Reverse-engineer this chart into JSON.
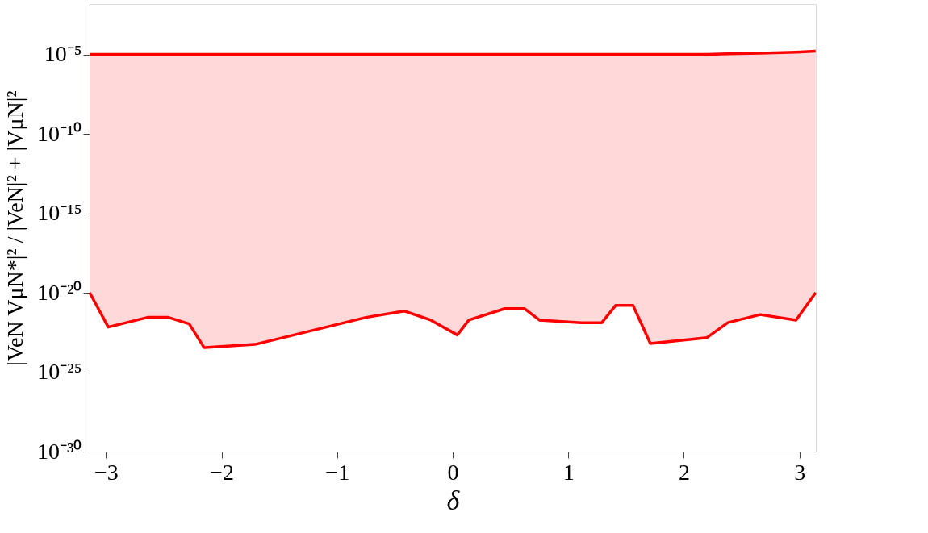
{
  "chart_data": {
    "type": "line",
    "xlabel": "δ",
    "ylabel": "|VeN VμN*|² / |VeN|² + |VμN|²",
    "log": "y",
    "grid": false,
    "line_style": "solid",
    "xlim": [
      -3.1416,
      3.1416
    ],
    "xticks": [
      -3,
      -2,
      -1,
      0,
      1,
      2,
      3
    ],
    "ylim": [
      1e-30,
      0.015
    ],
    "yticks": [
      {
        "value": 1e-30,
        "label": "10⁻³⁰"
      },
      {
        "value": 1e-25,
        "label": "10⁻²⁵"
      },
      {
        "value": 1e-20,
        "label": "10⁻²⁰"
      },
      {
        "value": 1e-15,
        "label": "10⁻¹⁵"
      },
      {
        "value": 1e-10,
        "label": "10⁻¹⁰"
      },
      {
        "value": 1e-05,
        "label": "10⁻⁵"
      }
    ],
    "series": [
      {
        "color": "#ff0000",
        "upper": [
          1e-05,
          1e-05,
          1e-05,
          1e-05,
          1e-05,
          1e-05,
          1e-05,
          1e-05,
          1e-05,
          1e-05,
          1e-05,
          1e-05,
          1e-05,
          1e-05,
          1e-05,
          1e-05,
          1e-05,
          1e-05,
          1e-05,
          1e-05,
          1e-05,
          1.1e-05,
          1.2e-05,
          1.4e-05,
          1.6e-05
        ],
        "x": [
          -3.14,
          -2.98,
          -2.64,
          -2.46,
          -2.28,
          -2.15,
          -1.71,
          -0.75,
          -0.42,
          -0.19,
          0.04,
          0.14,
          0.45,
          0.62,
          0.75,
          1.11,
          1.29,
          1.41,
          1.56,
          1.71,
          2.2,
          2.38,
          2.66,
          2.97,
          3.14
        ],
        "values": [
          1e-05,
          1e-05,
          1e-05,
          1e-05,
          1e-05,
          1e-05,
          1e-05,
          1e-05,
          1e-05,
          1e-05,
          1e-05,
          1e-05,
          1e-05,
          1e-05,
          1e-05,
          1e-05,
          1e-05,
          1e-05,
          1e-05,
          1e-05,
          1e-05,
          1.1e-05,
          1.2e-05,
          1.4e-05,
          1.6e-05
        ],
        "lower": [
          1e-20,
          6.9e-23,
          2.8e-22,
          2.8e-22,
          1.1e-22,
          3.5e-24,
          5.6e-24,
          2.8e-22,
          7.1e-22,
          1.9e-22,
          2.2e-23,
          1.9e-22,
          1e-21,
          1e-21,
          1.9e-22,
          1.3e-22,
          1.3e-22,
          1.6e-21,
          1.6e-21,
          6.3e-24,
          1.5e-23,
          1.3e-22,
          4.2e-22,
          1.9e-22,
          1e-20
        ]
      },
      {
        "color": "#ff0000",
        "x": [
          -3.14,
          -2.98,
          -2.64,
          -2.46,
          -2.28,
          -2.15,
          -1.71,
          -0.75,
          -0.42,
          -0.19,
          0.04,
          0.14,
          0.45,
          0.62,
          0.75,
          1.11,
          1.29,
          1.41,
          1.56,
          1.71,
          2.2,
          2.38,
          2.66,
          2.97,
          3.14
        ],
        "values": [
          1e-20,
          6.9e-23,
          2.8e-22,
          2.8e-22,
          1.1e-22,
          3.5e-24,
          5.6e-24,
          2.8e-22,
          7.1e-22,
          1.9e-22,
          2.2e-23,
          1.9e-22,
          1e-21,
          1e-21,
          1.9e-22,
          1.3e-22,
          1.3e-22,
          1.6e-21,
          1.6e-21,
          6.3e-24,
          1.5e-23,
          1.3e-22,
          4.2e-22,
          1.9e-22,
          1e-20
        ]
      }
    ]
  }
}
